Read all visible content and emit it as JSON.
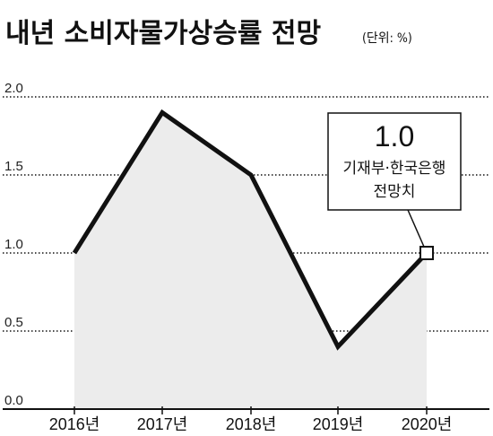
{
  "header": {
    "title": "내년 소비자물가상승률 전망",
    "unit": "(단위: %)"
  },
  "callout": {
    "value": "1.0",
    "line1": "기재부·한국은행",
    "line2": "전망치"
  },
  "colors": {
    "line": "#111111",
    "area": "#ececec",
    "grid": "#111111",
    "marker_fill": "#ffffff"
  },
  "chart_data": {
    "type": "line",
    "title": "내년 소비자물가상승률 전망",
    "unit": "(단위: %)",
    "categories": [
      "2016년",
      "2017년",
      "2018년",
      "2019년",
      "2020년"
    ],
    "values": [
      1.0,
      1.9,
      1.5,
      0.4,
      1.0
    ],
    "yticks": [
      "2.0",
      "1.5",
      "1.0",
      "0.5",
      "0.0"
    ],
    "ylim": [
      0,
      2.0
    ],
    "grid": true,
    "area_fill": true,
    "highlighted_point": {
      "category": "2020년",
      "value": 1.0,
      "marker": "open-square"
    }
  }
}
